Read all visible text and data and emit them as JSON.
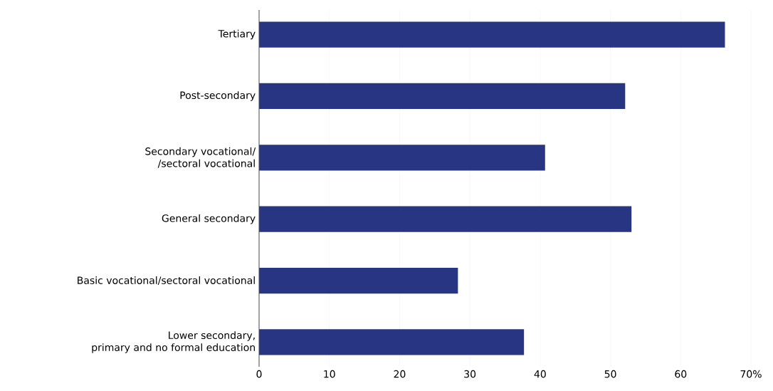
{
  "chart_data": {
    "type": "bar",
    "orientation": "horizontal",
    "categories": [
      "Tertiary",
      "Post-secondary",
      "Secondary vocational/\n/sectoral vocational",
      "General secondary",
      "Basic vocational/sectoral vocational",
      "Lower secondary,\nprimary and no formal education"
    ],
    "values": [
      66.3,
      52.1,
      40.7,
      53.0,
      28.3,
      37.7
    ],
    "color": "#283583",
    "xlim": [
      0,
      70
    ],
    "xticks": [
      0,
      10,
      20,
      30,
      40,
      50,
      60,
      {
        "value": 70,
        "label": "70%"
      }
    ],
    "grid": "x"
  }
}
